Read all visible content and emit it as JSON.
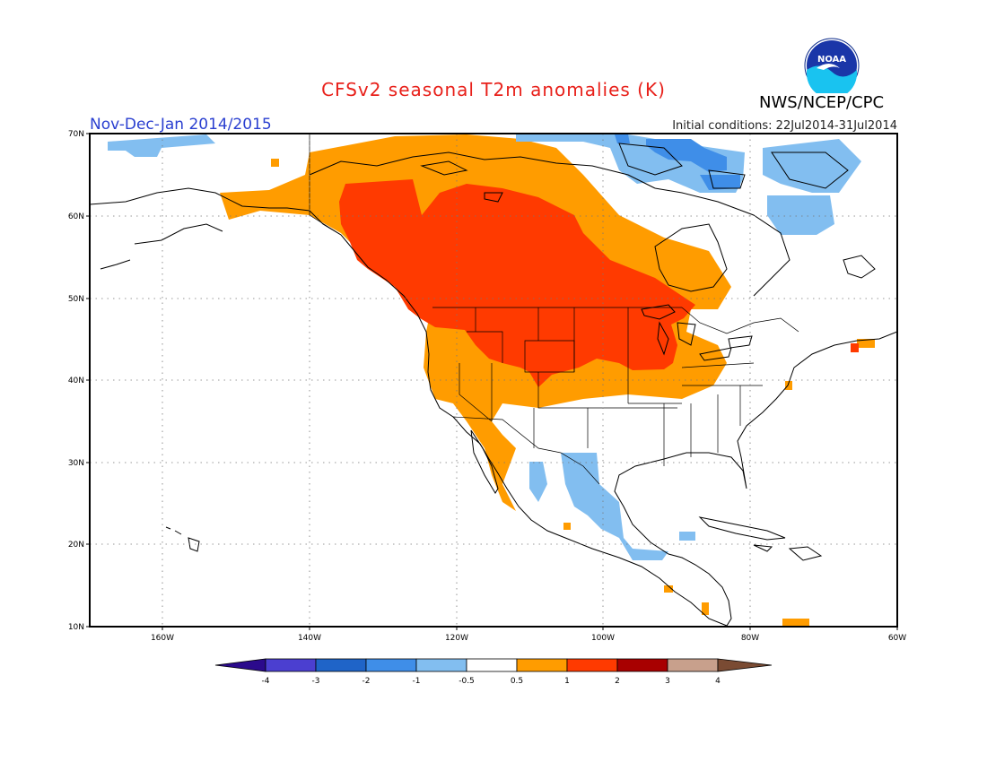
{
  "title": "CFSv2 seasonal T2m anomalies (K)",
  "agency": "NWS/NCEP/CPC",
  "period": "Nov-Dec-Jan 2014/2015",
  "initial_conditions": "Initial conditions: 22Jul2014-31Jul2014",
  "logo_text": "NOAA",
  "lat_labels": [
    "70N",
    "60N",
    "50N",
    "40N",
    "30N",
    "20N",
    "10N"
  ],
  "lon_labels": [
    "160W",
    "140W",
    "120W",
    "100W",
    "80W",
    "60W"
  ],
  "colorbar": {
    "labels": [
      "-4",
      "-3",
      "-2",
      "-1",
      "-0.5",
      "0.5",
      "1",
      "2",
      "3",
      "4"
    ],
    "colors": [
      "#2b0a8c",
      "#4b3fd0",
      "#1f64c8",
      "#3f8ee8",
      "#82bef0",
      "#ffffff",
      "#ff9c00",
      "#ff3a00",
      "#a80000",
      "#c8a08c",
      "#7a4b33"
    ]
  },
  "anomaly_colors": {
    "warm_0_5_to_1": "#ff9c00",
    "warm_1_to_2": "#ff3a00",
    "cool_minus1_to_minus0_5": "#82bef0",
    "cool_minus2_to_minus1": "#3f8ee8"
  }
}
